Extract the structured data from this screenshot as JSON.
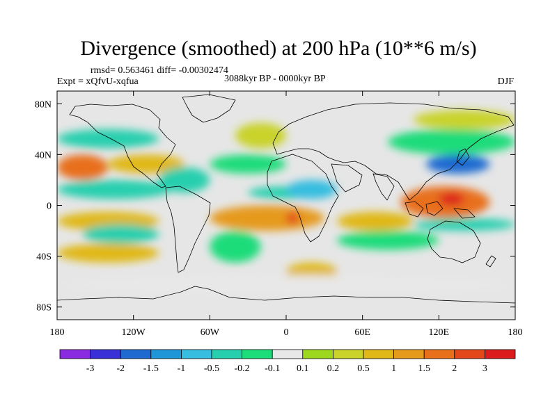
{
  "title": "Divergence (smoothed) at 200 hPa (10**6 m/s)",
  "stats": {
    "rmsd_label": "rmsd=",
    "rmsd": "0.563461",
    "diff_label": "diff=",
    "diff": "-0.00302474"
  },
  "experiment": "Expt = xQfvU-xqfua",
  "period": "3088kyr BP - 0000kyr BP",
  "season": "DJF",
  "colors": {
    "background": "#e6e6e6",
    "frame": "#000000",
    "bins": [
      "#8a2be2",
      "#3a30d8",
      "#1e6ad0",
      "#1e96d8",
      "#36bde0",
      "#28cfae",
      "#1ddc7a",
      "#e8e8e8",
      "#9ed81e",
      "#c9d32a",
      "#e0b818",
      "#e69a1c",
      "#e8701a",
      "#e2481a",
      "#dc1c1c"
    ]
  },
  "chart_data": {
    "type": "heatmap",
    "title": "Divergence (smoothed) at 200 hPa (10**6 m/s)",
    "subtitle": "3088kyr BP - 0000kyr BP",
    "xlabel": "",
    "ylabel": "",
    "x_range": [
      -180,
      180
    ],
    "y_range": [
      -90,
      90
    ],
    "x_ticks": [
      {
        "value": -180,
        "label": "180"
      },
      {
        "value": -120,
        "label": "120W"
      },
      {
        "value": -60,
        "label": "60W"
      },
      {
        "value": 0,
        "label": "0"
      },
      {
        "value": 60,
        "label": "60E"
      },
      {
        "value": 120,
        "label": "120E"
      },
      {
        "value": 180,
        "label": "180"
      }
    ],
    "y_ticks": [
      {
        "value": 80,
        "label": "80N"
      },
      {
        "value": 40,
        "label": "40N"
      },
      {
        "value": 0,
        "label": "0"
      },
      {
        "value": -40,
        "label": "40S"
      },
      {
        "value": -80,
        "label": "80S"
      }
    ],
    "colorbar_levels": [
      "-3",
      "-2",
      "-1.5",
      "-1",
      "-0.5",
      "-0.2",
      "-0.1",
      "0.1",
      "0.2",
      "0.5",
      "1",
      "1.5",
      "2",
      "3"
    ],
    "regions": [
      {
        "lon": [
          -180,
          -140
        ],
        "lat": [
          20,
          40
        ],
        "value": 1.5
      },
      {
        "lon": [
          -140,
          -80
        ],
        "lat": [
          25,
          40
        ],
        "value": 0.5
      },
      {
        "lon": [
          -180,
          -100
        ],
        "lat": [
          45,
          60
        ],
        "value": -0.5
      },
      {
        "lon": [
          -180,
          -90
        ],
        "lat": [
          5,
          20
        ],
        "value": -0.5
      },
      {
        "lon": [
          -100,
          -60
        ],
        "lat": [
          10,
          30
        ],
        "value": -0.5
      },
      {
        "lon": [
          -60,
          0
        ],
        "lat": [
          25,
          40
        ],
        "value": -0.2
      },
      {
        "lon": [
          -40,
          0
        ],
        "lat": [
          45,
          65
        ],
        "value": 0.2
      },
      {
        "lon": [
          -30,
          30
        ],
        "lat": [
          5,
          15
        ],
        "value": -0.5
      },
      {
        "lon": [
          0,
          40
        ],
        "lat": [
          5,
          20
        ],
        "value": -1
      },
      {
        "lon": [
          -60,
          30
        ],
        "lat": [
          -20,
          0
        ],
        "value": 1
      },
      {
        "lon": [
          0,
          10
        ],
        "lat": [
          -15,
          -5
        ],
        "value": 2
      },
      {
        "lon": [
          -180,
          -100
        ],
        "lat": [
          -20,
          -5
        ],
        "value": 0.5
      },
      {
        "lon": [
          -160,
          -100
        ],
        "lat": [
          -30,
          -15
        ],
        "value": -0.5
      },
      {
        "lon": [
          -180,
          -100
        ],
        "lat": [
          -45,
          -30
        ],
        "value": 0.5
      },
      {
        "lon": [
          -60,
          -20
        ],
        "lat": [
          -45,
          -20
        ],
        "value": -0.2
      },
      {
        "lon": [
          40,
          100
        ],
        "lat": [
          -20,
          -5
        ],
        "value": 0.5
      },
      {
        "lon": [
          40,
          120
        ],
        "lat": [
          -35,
          -20
        ],
        "value": -0.2
      },
      {
        "lon": [
          100,
          180
        ],
        "lat": [
          -20,
          -10
        ],
        "value": -0.5
      },
      {
        "lon": [
          90,
          160
        ],
        "lat": [
          -10,
          15
        ],
        "value": 1.5
      },
      {
        "lon": [
          120,
          140
        ],
        "lat": [
          0,
          10
        ],
        "value": 3
      },
      {
        "lon": [
          110,
          160
        ],
        "lat": [
          25,
          40
        ],
        "value": -2
      },
      {
        "lon": [
          80,
          180
        ],
        "lat": [
          40,
          60
        ],
        "value": -0.2
      },
      {
        "lon": [
          100,
          180
        ],
        "lat": [
          60,
          75
        ],
        "value": 0.2
      },
      {
        "lon": [
          0,
          40
        ],
        "lat": [
          -60,
          -45
        ],
        "value": 0.5
      },
      {
        "lon": [
          -180,
          180
        ],
        "lat": [
          -70,
          -55
        ],
        "value": -0.1
      }
    ]
  }
}
